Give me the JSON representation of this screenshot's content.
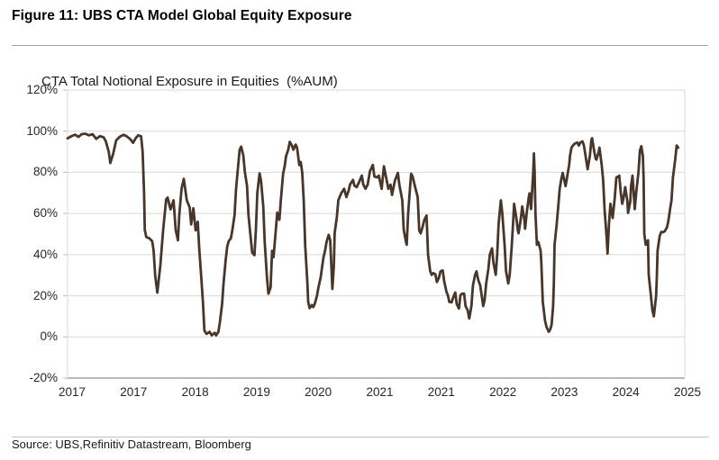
{
  "figure": {
    "title": "Figure 11: UBS CTA Model Global Equity Exposure",
    "source": "Source: UBS,Refinitiv Datastream, Bloomberg"
  },
  "chart_data": {
    "type": "line",
    "title": "CTA Total Notional Exposure in Equities  (%AUM)",
    "series_name": "CTA total notional equity exposure (% of AUM)",
    "legend": "none",
    "grid": "horizontal",
    "xlabel": "",
    "ylabel": "",
    "line_color": "#473629",
    "grid_color": "#d9d9d9",
    "axis_color": "#737373",
    "tick_color": "#bfbfbf",
    "ylim": [
      -20,
      120
    ],
    "xlim": [
      2016.94,
      2025.33
    ],
    "y_ticks": [
      120,
      100,
      80,
      60,
      40,
      20,
      0,
      -20
    ],
    "y_tick_labels": [
      "120%",
      "100%",
      "80%",
      "60%",
      "40%",
      "20%",
      "0%",
      "-20%"
    ],
    "x_tick_labels": [
      "2017",
      "2017",
      "2018",
      "2019",
      "2020",
      "2021",
      "2021",
      "2022",
      "2023",
      "2024",
      "2025"
    ],
    "points": [
      [
        2016.94,
        96.5
      ],
      [
        2016.99,
        97.5
      ],
      [
        2017.04,
        98.3
      ],
      [
        2017.09,
        97.2
      ],
      [
        2017.13,
        98.5
      ],
      [
        2017.18,
        98.8
      ],
      [
        2017.23,
        98
      ],
      [
        2017.28,
        98.5
      ],
      [
        2017.33,
        96.3
      ],
      [
        2017.38,
        97.6
      ],
      [
        2017.43,
        97
      ],
      [
        2017.46,
        95
      ],
      [
        2017.5,
        90
      ],
      [
        2017.52,
        84.5
      ],
      [
        2017.56,
        89
      ],
      [
        2017.6,
        95.5
      ],
      [
        2017.65,
        97.3
      ],
      [
        2017.7,
        98.2
      ],
      [
        2017.74,
        97.6
      ],
      [
        2017.79,
        96.2
      ],
      [
        2017.83,
        94.3
      ],
      [
        2017.87,
        96.8
      ],
      [
        2017.9,
        98
      ],
      [
        2017.94,
        97.5
      ],
      [
        2017.96,
        90
      ],
      [
        2017.98,
        70
      ],
      [
        2017.99,
        52
      ],
      [
        2018.01,
        48.5
      ],
      [
        2018.05,
        48
      ],
      [
        2018.09,
        46.5
      ],
      [
        2018.11,
        42
      ],
      [
        2018.13,
        30
      ],
      [
        2018.16,
        21.5
      ],
      [
        2018.2,
        34.5
      ],
      [
        2018.24,
        52
      ],
      [
        2018.28,
        66.8
      ],
      [
        2018.3,
        67.7
      ],
      [
        2018.34,
        62
      ],
      [
        2018.38,
        66.4
      ],
      [
        2018.41,
        52
      ],
      [
        2018.44,
        47
      ],
      [
        2018.46,
        60
      ],
      [
        2018.49,
        72
      ],
      [
        2018.52,
        76.8
      ],
      [
        2018.56,
        66.4
      ],
      [
        2018.6,
        63
      ],
      [
        2018.62,
        54.7
      ],
      [
        2018.65,
        62.5
      ],
      [
        2018.68,
        51.8
      ],
      [
        2018.71,
        56
      ],
      [
        2018.73,
        43.1
      ],
      [
        2018.76,
        27.6
      ],
      [
        2018.78,
        17.2
      ],
      [
        2018.8,
        3
      ],
      [
        2018.83,
        1.5
      ],
      [
        2018.87,
        2.5
      ],
      [
        2018.9,
        0.8
      ],
      [
        2018.94,
        2
      ],
      [
        2018.96,
        0.8
      ],
      [
        2018.99,
        2.5
      ],
      [
        2019.01,
        7
      ],
      [
        2019.04,
        16
      ],
      [
        2019.06,
        26
      ],
      [
        2019.09,
        37.5
      ],
      [
        2019.11,
        44
      ],
      [
        2019.13,
        46.5
      ],
      [
        2019.16,
        48
      ],
      [
        2019.18,
        52
      ],
      [
        2019.21,
        59
      ],
      [
        2019.23,
        72
      ],
      [
        2019.26,
        83.6
      ],
      [
        2019.28,
        91
      ],
      [
        2019.3,
        92.5
      ],
      [
        2019.33,
        88
      ],
      [
        2019.35,
        80
      ],
      [
        2019.38,
        73.3
      ],
      [
        2019.4,
        59.1
      ],
      [
        2019.43,
        48
      ],
      [
        2019.45,
        41
      ],
      [
        2019.48,
        39.7
      ],
      [
        2019.5,
        52
      ],
      [
        2019.52,
        70
      ],
      [
        2019.55,
        79.5
      ],
      [
        2019.57,
        76
      ],
      [
        2019.6,
        63.4
      ],
      [
        2019.62,
        46.1
      ],
      [
        2019.65,
        28.9
      ],
      [
        2019.67,
        21
      ],
      [
        2019.7,
        24
      ],
      [
        2019.72,
        41.8
      ],
      [
        2019.74,
        38.8
      ],
      [
        2019.77,
        51.8
      ],
      [
        2019.79,
        60.4
      ],
      [
        2019.82,
        56.9
      ],
      [
        2019.84,
        67
      ],
      [
        2019.87,
        79.3
      ],
      [
        2019.89,
        82.8
      ],
      [
        2019.91,
        87.9
      ],
      [
        2019.94,
        91
      ],
      [
        2019.96,
        94.8
      ],
      [
        2019.99,
        93
      ],
      [
        2020.01,
        91
      ],
      [
        2020.04,
        93.5
      ],
      [
        2020.06,
        92
      ],
      [
        2020.09,
        83.5
      ],
      [
        2020.11,
        85
      ],
      [
        2020.13,
        80
      ],
      [
        2020.15,
        66.4
      ],
      [
        2020.17,
        44.8
      ],
      [
        2020.2,
        25.9
      ],
      [
        2020.21,
        17.2
      ],
      [
        2020.23,
        14
      ],
      [
        2020.26,
        15.5
      ],
      [
        2020.28,
        14.5
      ],
      [
        2020.3,
        16
      ],
      [
        2020.33,
        20
      ],
      [
        2020.35,
        24
      ],
      [
        2020.38,
        28.9
      ],
      [
        2020.4,
        34
      ],
      [
        2020.42,
        38.8
      ],
      [
        2020.44,
        42
      ],
      [
        2020.46,
        46.1
      ],
      [
        2020.49,
        49.6
      ],
      [
        2020.51,
        47
      ],
      [
        2020.54,
        23.3
      ],
      [
        2020.56,
        35
      ],
      [
        2020.57,
        50.4
      ],
      [
        2020.6,
        58
      ],
      [
        2020.62,
        66.4
      ],
      [
        2020.66,
        69.8
      ],
      [
        2020.7,
        72
      ],
      [
        2020.73,
        68
      ],
      [
        2020.76,
        71
      ],
      [
        2020.78,
        74.1
      ],
      [
        2020.82,
        76.3
      ],
      [
        2020.84,
        73.5
      ],
      [
        2020.87,
        72.8
      ],
      [
        2020.9,
        75
      ],
      [
        2020.94,
        78.4
      ],
      [
        2020.96,
        74
      ],
      [
        2020.99,
        72
      ],
      [
        2021.02,
        74.1
      ],
      [
        2021.05,
        80.6
      ],
      [
        2021.09,
        83.6
      ],
      [
        2021.11,
        78
      ],
      [
        2021.15,
        77.5
      ],
      [
        2021.17,
        78.4
      ],
      [
        2021.21,
        72
      ],
      [
        2021.24,
        83
      ],
      [
        2021.27,
        77.6
      ],
      [
        2021.3,
        72
      ],
      [
        2021.33,
        74
      ],
      [
        2021.35,
        69
      ],
      [
        2021.39,
        76
      ],
      [
        2021.43,
        79.7
      ],
      [
        2021.45,
        74
      ],
      [
        2021.49,
        66.4
      ],
      [
        2021.51,
        52
      ],
      [
        2021.54,
        46.1
      ],
      [
        2021.55,
        44.8
      ],
      [
        2021.57,
        60
      ],
      [
        2021.6,
        75
      ],
      [
        2021.61,
        79.3
      ],
      [
        2021.63,
        78
      ],
      [
        2021.67,
        72
      ],
      [
        2021.7,
        68
      ],
      [
        2021.72,
        51.7
      ],
      [
        2021.74,
        50.3
      ],
      [
        2021.77,
        54
      ],
      [
        2021.79,
        56.9
      ],
      [
        2021.82,
        59
      ],
      [
        2021.84,
        40
      ],
      [
        2021.87,
        31.9
      ],
      [
        2021.89,
        30.2
      ],
      [
        2021.91,
        31
      ],
      [
        2021.94,
        30.5
      ],
      [
        2021.96,
        26.7
      ],
      [
        2021.99,
        29
      ],
      [
        2022.01,
        31.9
      ],
      [
        2022.04,
        32.3
      ],
      [
        2022.06,
        27
      ],
      [
        2022.09,
        22
      ],
      [
        2022.11,
        20.2
      ],
      [
        2022.13,
        17
      ],
      [
        2022.16,
        16.8
      ],
      [
        2022.18,
        19
      ],
      [
        2022.21,
        21.6
      ],
      [
        2022.23,
        16
      ],
      [
        2022.26,
        13.8
      ],
      [
        2022.28,
        20.2
      ],
      [
        2022.3,
        21
      ],
      [
        2022.33,
        21.1
      ],
      [
        2022.35,
        15
      ],
      [
        2022.38,
        12.9
      ],
      [
        2022.4,
        9
      ],
      [
        2022.43,
        15
      ],
      [
        2022.45,
        25
      ],
      [
        2022.48,
        30.2
      ],
      [
        2022.5,
        31.9
      ],
      [
        2022.52,
        28
      ],
      [
        2022.55,
        25
      ],
      [
        2022.59,
        15
      ],
      [
        2022.61,
        18
      ],
      [
        2022.63,
        26
      ],
      [
        2022.66,
        33
      ],
      [
        2022.68,
        40
      ],
      [
        2022.71,
        43
      ],
      [
        2022.73,
        36
      ],
      [
        2022.76,
        30.2
      ],
      [
        2022.78,
        40
      ],
      [
        2022.8,
        55
      ],
      [
        2022.83,
        66.4
      ],
      [
        2022.85,
        60
      ],
      [
        2022.88,
        45
      ],
      [
        2022.9,
        32
      ],
      [
        2022.93,
        26
      ],
      [
        2022.95,
        30
      ],
      [
        2022.98,
        45
      ],
      [
        2023.0,
        58
      ],
      [
        2023.01,
        64.7
      ],
      [
        2023.04,
        58
      ],
      [
        2023.06,
        52
      ],
      [
        2023.07,
        50.4
      ],
      [
        2023.1,
        57
      ],
      [
        2023.12,
        63.4
      ],
      [
        2023.15,
        57
      ],
      [
        2023.16,
        52.6
      ],
      [
        2023.18,
        60
      ],
      [
        2023.21,
        68
      ],
      [
        2023.22,
        69.8
      ],
      [
        2023.24,
        62.1
      ],
      [
        2023.27,
        80
      ],
      [
        2023.28,
        89.2
      ],
      [
        2023.29,
        80
      ],
      [
        2023.3,
        60
      ],
      [
        2023.32,
        44.8
      ],
      [
        2023.34,
        46.1
      ],
      [
        2023.37,
        42
      ],
      [
        2023.38,
        36.2
      ],
      [
        2023.4,
        17.2
      ],
      [
        2023.43,
        8
      ],
      [
        2023.45,
        5
      ],
      [
        2023.48,
        2.5
      ],
      [
        2023.5,
        3.5
      ],
      [
        2023.52,
        6
      ],
      [
        2023.54,
        15
      ],
      [
        2023.55,
        25.9
      ],
      [
        2023.56,
        44.8
      ],
      [
        2023.59,
        55
      ],
      [
        2023.61,
        63.4
      ],
      [
        2023.63,
        72
      ],
      [
        2023.65,
        76.3
      ],
      [
        2023.67,
        79.7
      ],
      [
        2023.7,
        75
      ],
      [
        2023.71,
        73.3
      ],
      [
        2023.73,
        77.6
      ],
      [
        2023.76,
        84
      ],
      [
        2023.77,
        87.9
      ],
      [
        2023.79,
        92
      ],
      [
        2023.82,
        93.5
      ],
      [
        2023.84,
        94
      ],
      [
        2023.87,
        94.5
      ],
      [
        2023.89,
        93
      ],
      [
        2023.91,
        94.5
      ],
      [
        2023.94,
        95
      ],
      [
        2023.96,
        93
      ],
      [
        2023.99,
        86
      ],
      [
        2024.01,
        81.5
      ],
      [
        2024.04,
        88
      ],
      [
        2024.06,
        95.5
      ],
      [
        2024.07,
        96.6
      ],
      [
        2024.1,
        90
      ],
      [
        2024.12,
        86.5
      ],
      [
        2024.13,
        86.2
      ],
      [
        2024.16,
        90
      ],
      [
        2024.17,
        92
      ],
      [
        2024.2,
        84
      ],
      [
        2024.22,
        76.3
      ],
      [
        2024.24,
        62
      ],
      [
        2024.27,
        47
      ],
      [
        2024.28,
        40.5
      ],
      [
        2024.3,
        55
      ],
      [
        2024.32,
        64.7
      ],
      [
        2024.34,
        60
      ],
      [
        2024.35,
        57.8
      ],
      [
        2024.38,
        68
      ],
      [
        2024.4,
        77.6
      ],
      [
        2024.43,
        78
      ],
      [
        2024.44,
        78.4
      ],
      [
        2024.46,
        70
      ],
      [
        2024.48,
        64.7
      ],
      [
        2024.5,
        68
      ],
      [
        2024.52,
        72.8
      ],
      [
        2024.55,
        66
      ],
      [
        2024.56,
        60.3
      ],
      [
        2024.59,
        66
      ],
      [
        2024.6,
        73.3
      ],
      [
        2024.62,
        78.4
      ],
      [
        2024.65,
        62.1
      ],
      [
        2024.67,
        70
      ],
      [
        2024.7,
        80
      ],
      [
        2024.71,
        84.9
      ],
      [
        2024.72,
        90.5
      ],
      [
        2024.74,
        92.7
      ],
      [
        2024.76,
        88
      ],
      [
        2024.77,
        77.6
      ],
      [
        2024.78,
        50
      ],
      [
        2024.8,
        44.8
      ],
      [
        2024.83,
        47
      ],
      [
        2024.84,
        30.2
      ],
      [
        2024.87,
        20.2
      ],
      [
        2024.89,
        12.9
      ],
      [
        2024.91,
        10
      ],
      [
        2024.94,
        20
      ],
      [
        2024.95,
        28.9
      ],
      [
        2024.96,
        41.8
      ],
      [
        2024.99,
        49.1
      ],
      [
        2025.01,
        51
      ],
      [
        2025.04,
        50.9
      ],
      [
        2025.06,
        51.5
      ],
      [
        2025.09,
        53.4
      ],
      [
        2025.11,
        56.9
      ],
      [
        2025.13,
        62.1
      ],
      [
        2025.15,
        66.4
      ],
      [
        2025.17,
        77.6
      ],
      [
        2025.2,
        86.2
      ],
      [
        2025.22,
        93
      ],
      [
        2025.24,
        92
      ]
    ]
  }
}
